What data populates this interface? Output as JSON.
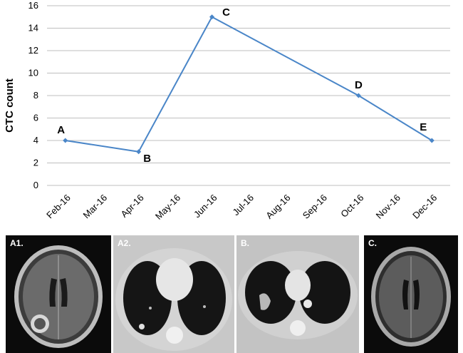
{
  "chart_data": {
    "type": "line",
    "title": "",
    "xlabel": "",
    "ylabel": "CTC count",
    "ylim": [
      0,
      16
    ],
    "yticks": [
      0,
      2,
      4,
      6,
      8,
      10,
      12,
      14,
      16
    ],
    "categories": [
      "Feb-16",
      "Mar-16",
      "Apr-16",
      "May-16",
      "Jun-16",
      "Jul-16",
      "Aug-16",
      "Sep-16",
      "Oct-16",
      "Nov-16",
      "Dec-16"
    ],
    "grid": true,
    "line_color": "#4a86c8",
    "points": [
      {
        "category": "Feb-16",
        "value": 4,
        "label": "A"
      },
      {
        "category": "Apr-16",
        "value": 3,
        "label": "B"
      },
      {
        "category": "Jun-16",
        "value": 15,
        "label": "C"
      },
      {
        "category": "Oct-16",
        "value": 8,
        "label": "D"
      },
      {
        "category": "Dec-16",
        "value": 4,
        "label": "E"
      }
    ]
  },
  "panels": [
    {
      "label": "A1.",
      "kind": "brain-mri-lesion"
    },
    {
      "label": "A2.",
      "kind": "chest-ct-clear"
    },
    {
      "label": "B.",
      "kind": "chest-ct-mass"
    },
    {
      "label": "C.",
      "kind": "brain-mri-clear"
    }
  ]
}
